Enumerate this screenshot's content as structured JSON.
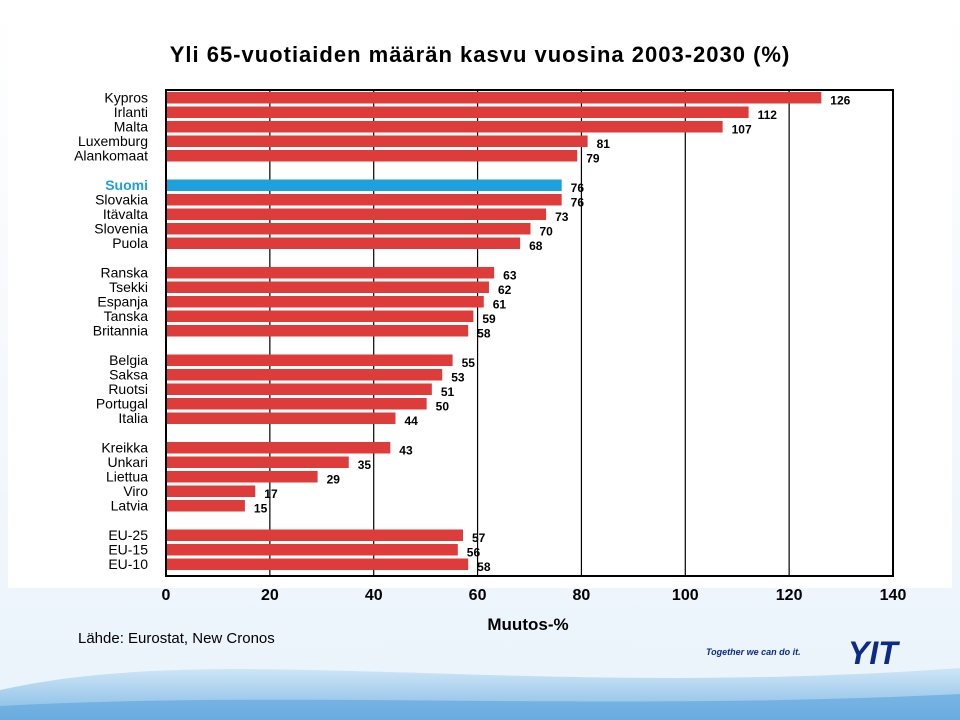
{
  "slide": {
    "title": "Yli 65-vuotiaiden määrän kasvu vuosina 2003-2030 (%)",
    "source": "Lähde: Eurostat, New Cronos",
    "tagline": "Together we can do it.",
    "logo_text": "YIT"
  },
  "colors": {
    "bar": "#de3b3b",
    "highlight": "#1ea0dc",
    "highlight_label": "#1ea0dc",
    "brand": "#0b2a8a",
    "wave": "#8fc3e8"
  },
  "chart_data": {
    "type": "bar",
    "orientation": "horizontal",
    "title": "Yli 65-vuotiaiden määrän kasvu vuosina 2003-2030 (%)",
    "xlabel": "Muutos-%",
    "ylabel": "",
    "xlim": [
      0,
      140
    ],
    "xticks": [
      0,
      20,
      40,
      60,
      80,
      100,
      120,
      140
    ],
    "grid": true,
    "highlight_category": "Suomi",
    "groups": [
      [
        "Kypros",
        "Irlanti",
        "Malta",
        "Luxemburg",
        "Alankomaat"
      ],
      [
        "Suomi",
        "Slovakia",
        "Itävalta",
        "Slovenia",
        "Puola"
      ],
      [
        "Ranska",
        "Tsekki",
        "Espanja",
        "Tanska",
        "Britannia"
      ],
      [
        "Belgia",
        "Saksa",
        "Ruotsi",
        "Portugal",
        "Italia"
      ],
      [
        "Kreikka",
        "Unkari",
        "Liettua",
        "Viro",
        "Latvia"
      ],
      [
        "EU-25",
        "EU-15",
        "EU-10"
      ]
    ],
    "categories": [
      "Kypros",
      "Irlanti",
      "Malta",
      "Luxemburg",
      "Alankomaat",
      "Suomi",
      "Slovakia",
      "Itävalta",
      "Slovenia",
      "Puola",
      "Ranska",
      "Tsekki",
      "Espanja",
      "Tanska",
      "Britannia",
      "Belgia",
      "Saksa",
      "Ruotsi",
      "Portugal",
      "Italia",
      "Kreikka",
      "Unkari",
      "Liettua",
      "Viro",
      "Latvia",
      "EU-25",
      "EU-15",
      "EU-10"
    ],
    "values": [
      126,
      112,
      107,
      81,
      79,
      76,
      76,
      73,
      70,
      68,
      63,
      62,
      61,
      59,
      58,
      55,
      53,
      51,
      50,
      44,
      43,
      35,
      29,
      17,
      15,
      57,
      56,
      58
    ]
  }
}
